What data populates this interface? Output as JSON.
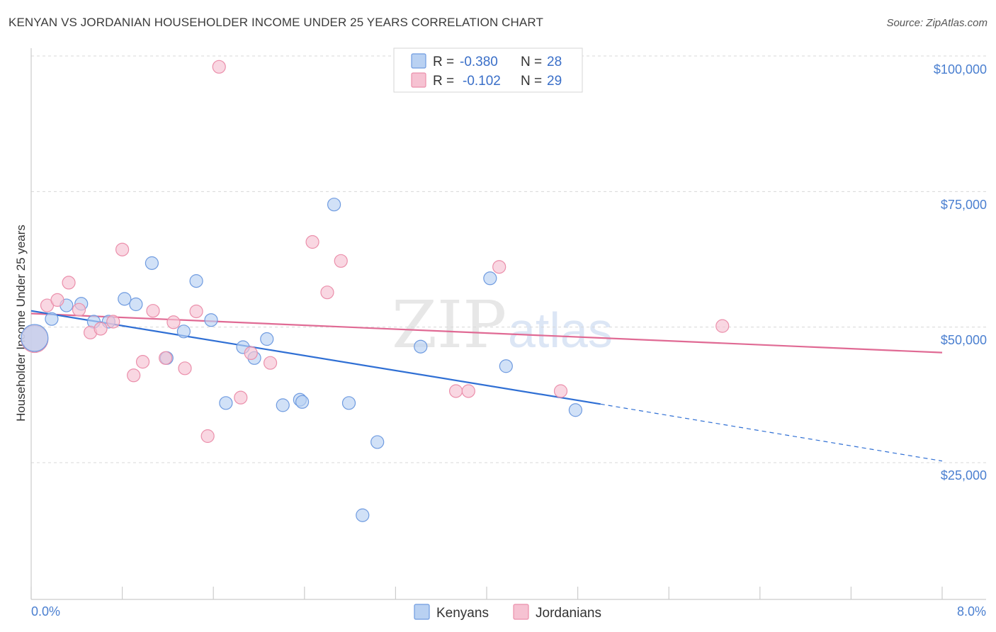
{
  "title": "KENYAN VS JORDANIAN HOUSEHOLDER INCOME UNDER 25 YEARS CORRELATION CHART",
  "source": "Source: ZipAtlas.com",
  "watermark": {
    "zip": "ZIP",
    "atlas": "atlas"
  },
  "colors": {
    "blue_fill": "#b9d1f2",
    "blue_stroke": "#6f9be0",
    "blue_line": "#2f6fd4",
    "pink_fill": "#f6c2d2",
    "pink_stroke": "#eb8fab",
    "pink_line": "#e06a94",
    "tick_label": "#4a7fd0",
    "grid": "#d8d8d8"
  },
  "legend_top": [
    {
      "series": "Kenyans",
      "r_label": "R =",
      "r_value": "-0.380",
      "n_label": "N =",
      "n_value": "28"
    },
    {
      "series": "Jordanians",
      "r_label": "R =",
      "r_value": "-0.102",
      "n_label": "N =",
      "n_value": "29"
    }
  ],
  "chart_data": {
    "type": "scatter",
    "title": "KENYAN VS JORDANIAN HOUSEHOLDER INCOME UNDER 25 YEARS CORRELATION CHART",
    "xlabel": "",
    "ylabel": "Householder Income Under 25 years",
    "xlim": [
      0,
      8
    ],
    "ylim": [
      0,
      105000
    ],
    "x_tick_labels": [
      "0.0%",
      "8.0%"
    ],
    "y_ticks": [
      25000,
      50000,
      75000,
      100000
    ],
    "y_tick_labels": [
      "$25,000",
      "$50,000",
      "$75,000",
      "$100,000"
    ],
    "grid": true,
    "legend_position": "bottom",
    "series": [
      {
        "name": "Kenyans",
        "r": -0.38,
        "n": 28,
        "points": [
          {
            "x": 0.03,
            "y": 48000,
            "big": true
          },
          {
            "x": 0.18,
            "y": 51500
          },
          {
            "x": 0.31,
            "y": 54000
          },
          {
            "x": 0.44,
            "y": 54300
          },
          {
            "x": 0.55,
            "y": 51000
          },
          {
            "x": 0.68,
            "y": 51000
          },
          {
            "x": 0.82,
            "y": 55200
          },
          {
            "x": 0.92,
            "y": 54200
          },
          {
            "x": 1.06,
            "y": 61800
          },
          {
            "x": 1.19,
            "y": 44300
          },
          {
            "x": 1.34,
            "y": 49200
          },
          {
            "x": 1.45,
            "y": 58500
          },
          {
            "x": 1.58,
            "y": 51300
          },
          {
            "x": 1.71,
            "y": 36000
          },
          {
            "x": 1.86,
            "y": 46300
          },
          {
            "x": 1.96,
            "y": 44300
          },
          {
            "x": 2.07,
            "y": 47800
          },
          {
            "x": 2.21,
            "y": 35600
          },
          {
            "x": 2.36,
            "y": 36600
          },
          {
            "x": 2.38,
            "y": 36200
          },
          {
            "x": 2.66,
            "y": 72600
          },
          {
            "x": 2.79,
            "y": 36000
          },
          {
            "x": 3.04,
            "y": 28800
          },
          {
            "x": 2.91,
            "y": 15300
          },
          {
            "x": 3.42,
            "y": 46400
          },
          {
            "x": 4.03,
            "y": 59000
          },
          {
            "x": 4.17,
            "y": 42800
          },
          {
            "x": 4.78,
            "y": 34700
          }
        ],
        "trend": {
          "x0": 0.0,
          "y0": 53000,
          "x1": 5.0,
          "y1": 35800,
          "dash_x1": 8.0,
          "dash_y1": 25300
        }
      },
      {
        "name": "Jordanians",
        "r": -0.102,
        "n": 29,
        "points": [
          {
            "x": 0.03,
            "y": 47800,
            "big": true
          },
          {
            "x": 0.14,
            "y": 54000
          },
          {
            "x": 0.23,
            "y": 55000
          },
          {
            "x": 0.33,
            "y": 58200
          },
          {
            "x": 0.42,
            "y": 53200
          },
          {
            "x": 0.52,
            "y": 49000
          },
          {
            "x": 0.61,
            "y": 49700
          },
          {
            "x": 0.72,
            "y": 51000
          },
          {
            "x": 0.8,
            "y": 64300
          },
          {
            "x": 0.9,
            "y": 41100
          },
          {
            "x": 0.98,
            "y": 43600
          },
          {
            "x": 1.07,
            "y": 53000
          },
          {
            "x": 1.18,
            "y": 44300
          },
          {
            "x": 1.25,
            "y": 50900
          },
          {
            "x": 1.35,
            "y": 42400
          },
          {
            "x": 1.45,
            "y": 52900
          },
          {
            "x": 1.55,
            "y": 29900
          },
          {
            "x": 1.65,
            "y": 98000
          },
          {
            "x": 1.84,
            "y": 37000
          },
          {
            "x": 1.93,
            "y": 45200
          },
          {
            "x": 2.1,
            "y": 43400
          },
          {
            "x": 2.47,
            "y": 65700
          },
          {
            "x": 2.6,
            "y": 56400
          },
          {
            "x": 2.72,
            "y": 62200
          },
          {
            "x": 3.73,
            "y": 38200
          },
          {
            "x": 3.84,
            "y": 38200
          },
          {
            "x": 4.11,
            "y": 61100
          },
          {
            "x": 4.65,
            "y": 38200
          },
          {
            "x": 6.07,
            "y": 50200
          }
        ],
        "trend": {
          "x0": 0.0,
          "y0": 52500,
          "x1": 8.0,
          "y1": 45300
        }
      }
    ]
  }
}
